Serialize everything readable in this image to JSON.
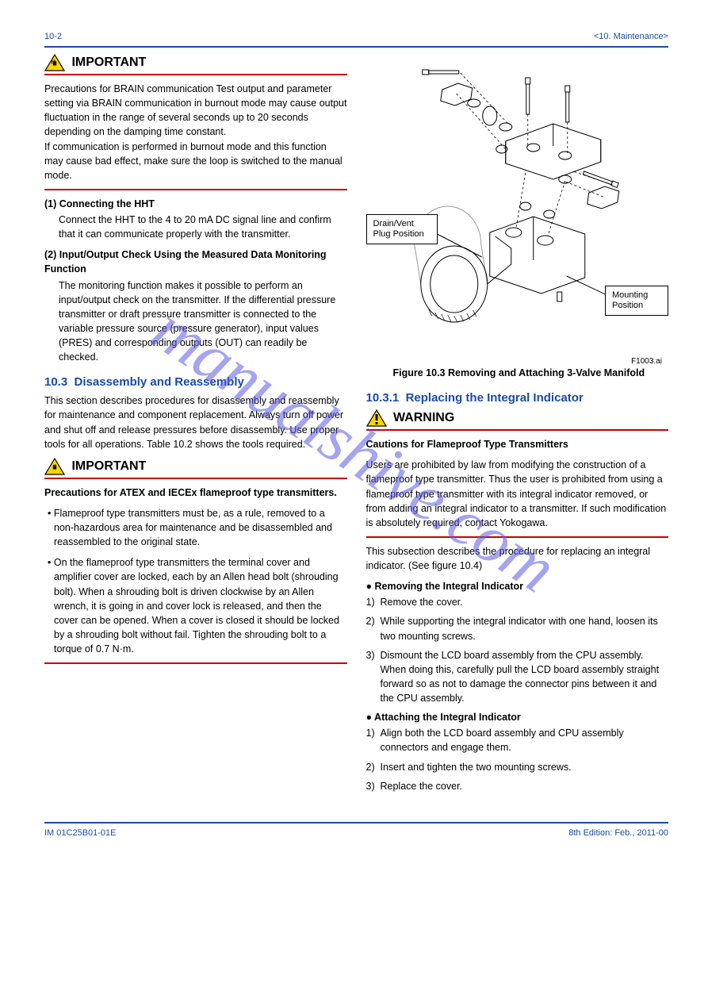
{
  "header": {
    "left": "10-2",
    "right": "<10. Maintenance>"
  },
  "footer": {
    "left": "IM 01C25B01-01E",
    "right": "8th Edition: Feb., 2011-00"
  },
  "watermark": "manualshive.com",
  "left_col": {
    "important1_label": "IMPORTANT",
    "important1_text": "Precautions for BRAIN communication  Test output and parameter setting via BRAIN communication in burnout mode may cause output fluctuation in the range of several seconds up to 20 seconds depending on the damping time constant. \nIf communication is performed in burnout mode and this function may cause bad effect, make sure the loop is switched to the manual mode.",
    "subhead1": "(1) Connecting the HHT",
    "subhead1_text": "Connect the HHT to the 4 to 20 mA DC signal line and confirm that it can communicate properly with the transmitter.",
    "subhead2": "(2) Input/Output Check Using the Measured Data Monitoring Function",
    "subhead2_text": "The monitoring function makes it possible to perform an input/output check on the transmitter.  If the differential pressure transmitter or draft pressure transmitter is connected to the variable pressure source (pressure generator), input values (PRES) and corresponding outputs (OUT) can readily be checked.",
    "section_num": "10.3",
    "section_title": "Disassembly and Reassembly",
    "section_text": "This section describes procedures for disassembly and reassembly for maintenance and component replacement.  Always turn off power and shut off and release pressures before disassembly. Use proper tools for all operations. Table 10.2 shows the tools required.",
    "important2_label": "IMPORTANT",
    "important2_heading": "Precautions for ATEX and IECEx flameproof type transmitters.",
    "important2_bullet1": "• Flameproof type transmitters must be, as a rule, removed to a non-hazardous area for maintenance and be disassembled and reassembled to the original state.",
    "important2_bullet2": "• On the flameproof type transmitters the terminal cover and amplifier cover are locked, each by an Allen head bolt (shrouding bolt). When a shrouding bolt is driven clockwise by an Allen wrench, it is going in and cover lock is released, and then the cover can be opened.  When a cover is closed it should be locked by a shrouding bolt without fail.  Tighten the shrouding bolt to a torque of 0.7 N·m."
  },
  "right_col": {
    "callout1": "Drain/Vent\nPlug Position",
    "callout2": "Mounting\nPosition",
    "fig_num": "F1003.ai",
    "fig_caption": "Figure 10.3   Removing and Attaching 3-Valve Manifold",
    "sub_num": "10.3.1",
    "sub_title": "Replacing the Integral Indicator",
    "warning_label": "WARNING",
    "warning_heading": "Cautions for Flameproof Type Transmitters",
    "warning_text": "Users are prohibited by law from modifying the construction of a flameproof type transmitter. Thus the user is prohibited from using a flameproof type transmitter with its integral indicator removed, or from adding an integral indicator to a transmitter. If such modification is absolutely required, contact Yokogawa.",
    "intro": "This subsection describes the procedure for replacing an integral indicator. (See figure 10.4)",
    "remove_head": "● Removing the Integral Indicator",
    "remove_steps": [
      "Remove the cover.",
      "While supporting the integral indicator with one hand, loosen its two mounting screws.",
      "Dismount the LCD board assembly from the CPU assembly.  When doing this, carefully pull the LCD board assembly straight forward so as not to damage the connector pins between it and the CPU assembly."
    ],
    "attach_head": "● Attaching the Integral Indicator",
    "attach_steps": [
      "Align both the LCD board assembly and CPU assembly connectors and engage them.",
      "Insert and tighten the two mounting screws.",
      "Replace the cover."
    ]
  },
  "colors": {
    "blue": "#1a4ba8",
    "red": "#cc0000",
    "warn_yellow": "#ffd500",
    "warn_border": "#000000"
  }
}
